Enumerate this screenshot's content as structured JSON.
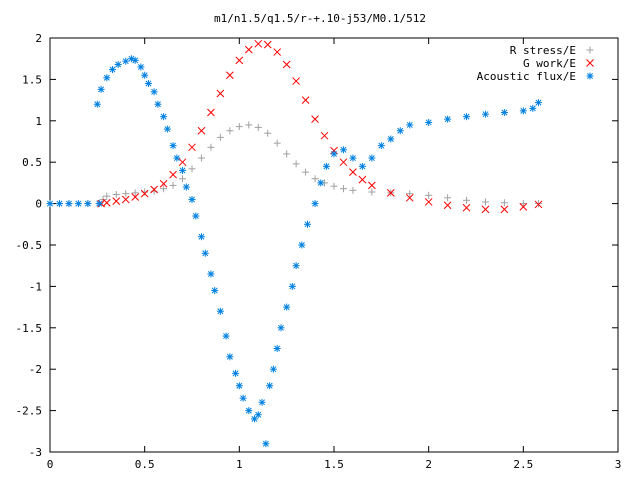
{
  "chart_data": {
    "type": "scatter",
    "title": "m1/n1.5/q1.5/r-+.10-j53/M0.1/512",
    "xlabel": "",
    "ylabel": "",
    "xlim": [
      0,
      3
    ],
    "ylim": [
      -3,
      2
    ],
    "xticks": [
      0,
      0.5,
      1,
      1.5,
      2,
      2.5,
      3
    ],
    "xtick_labels": [
      "0",
      "0.5",
      "1",
      "1.5",
      "2",
      "2.5",
      "3"
    ],
    "yticks": [
      -3,
      -2.5,
      -2,
      -1.5,
      -1,
      -0.5,
      0,
      0.5,
      1,
      1.5,
      2
    ],
    "ytick_labels": [
      "-3",
      "-2.5",
      "-2",
      "-1.5",
      "-1",
      "-0.5",
      "0",
      "0.5",
      "1",
      "1.5",
      "2"
    ],
    "grid": false,
    "legend_position": "top-right",
    "series": [
      {
        "name": "R stress/E",
        "marker": "plus",
        "color": "#a0a0a0",
        "points": [
          [
            0.0,
            0.0
          ],
          [
            0.1,
            0.0
          ],
          [
            0.2,
            0.0
          ],
          [
            0.26,
            0.0
          ],
          [
            0.28,
            0.05
          ],
          [
            0.3,
            0.09
          ],
          [
            0.35,
            0.11
          ],
          [
            0.4,
            0.12
          ],
          [
            0.45,
            0.13
          ],
          [
            0.5,
            0.14
          ],
          [
            0.55,
            0.15
          ],
          [
            0.6,
            0.18
          ],
          [
            0.65,
            0.22
          ],
          [
            0.7,
            0.3
          ],
          [
            0.75,
            0.42
          ],
          [
            0.8,
            0.55
          ],
          [
            0.85,
            0.68
          ],
          [
            0.9,
            0.8
          ],
          [
            0.95,
            0.88
          ],
          [
            1.0,
            0.93
          ],
          [
            1.05,
            0.95
          ],
          [
            1.1,
            0.92
          ],
          [
            1.15,
            0.85
          ],
          [
            1.2,
            0.73
          ],
          [
            1.25,
            0.6
          ],
          [
            1.3,
            0.48
          ],
          [
            1.35,
            0.38
          ],
          [
            1.4,
            0.3
          ],
          [
            1.45,
            0.25
          ],
          [
            1.5,
            0.21
          ],
          [
            1.55,
            0.18
          ],
          [
            1.6,
            0.16
          ],
          [
            1.7,
            0.14
          ],
          [
            1.8,
            0.13
          ],
          [
            1.9,
            0.12
          ],
          [
            2.0,
            0.1
          ],
          [
            2.1,
            0.07
          ],
          [
            2.2,
            0.04
          ],
          [
            2.3,
            0.02
          ],
          [
            2.4,
            0.01
          ],
          [
            2.5,
            0.0
          ],
          [
            2.58,
            0.0
          ]
        ]
      },
      {
        "name": "G work/E",
        "marker": "cross",
        "color": "#ff0000",
        "points": [
          [
            0.27,
            0.0
          ],
          [
            0.3,
            0.01
          ],
          [
            0.35,
            0.03
          ],
          [
            0.4,
            0.05
          ],
          [
            0.45,
            0.08
          ],
          [
            0.5,
            0.12
          ],
          [
            0.55,
            0.17
          ],
          [
            0.6,
            0.24
          ],
          [
            0.65,
            0.35
          ],
          [
            0.7,
            0.5
          ],
          [
            0.75,
            0.68
          ],
          [
            0.8,
            0.88
          ],
          [
            0.85,
            1.1
          ],
          [
            0.9,
            1.33
          ],
          [
            0.95,
            1.55
          ],
          [
            1.0,
            1.73
          ],
          [
            1.05,
            1.86
          ],
          [
            1.1,
            1.93
          ],
          [
            1.15,
            1.92
          ],
          [
            1.2,
            1.83
          ],
          [
            1.25,
            1.68
          ],
          [
            1.3,
            1.48
          ],
          [
            1.35,
            1.25
          ],
          [
            1.4,
            1.02
          ],
          [
            1.45,
            0.82
          ],
          [
            1.5,
            0.64
          ],
          [
            1.55,
            0.5
          ],
          [
            1.6,
            0.38
          ],
          [
            1.65,
            0.29
          ],
          [
            1.7,
            0.22
          ],
          [
            1.8,
            0.13
          ],
          [
            1.9,
            0.07
          ],
          [
            2.0,
            0.02
          ],
          [
            2.1,
            -0.02
          ],
          [
            2.2,
            -0.05
          ],
          [
            2.3,
            -0.07
          ],
          [
            2.4,
            -0.07
          ],
          [
            2.5,
            -0.04
          ],
          [
            2.58,
            -0.01
          ]
        ]
      },
      {
        "name": "Acoustic flux/E",
        "marker": "star",
        "color": "#0080e0",
        "points": [
          [
            0.0,
            0.0
          ],
          [
            0.05,
            0.0
          ],
          [
            0.1,
            0.0
          ],
          [
            0.15,
            0.0
          ],
          [
            0.2,
            0.0
          ],
          [
            0.26,
            0.0
          ],
          [
            0.25,
            1.2
          ],
          [
            0.27,
            1.38
          ],
          [
            0.3,
            1.52
          ],
          [
            0.33,
            1.62
          ],
          [
            0.36,
            1.68
          ],
          [
            0.4,
            1.72
          ],
          [
            0.43,
            1.75
          ],
          [
            0.45,
            1.73
          ],
          [
            0.48,
            1.65
          ],
          [
            0.5,
            1.55
          ],
          [
            0.52,
            1.45
          ],
          [
            0.55,
            1.35
          ],
          [
            0.57,
            1.2
          ],
          [
            0.6,
            1.05
          ],
          [
            0.62,
            0.9
          ],
          [
            0.65,
            0.7
          ],
          [
            0.67,
            0.55
          ],
          [
            0.7,
            0.4
          ],
          [
            0.72,
            0.2
          ],
          [
            0.75,
            0.05
          ],
          [
            0.77,
            -0.15
          ],
          [
            0.8,
            -0.4
          ],
          [
            0.82,
            -0.6
          ],
          [
            0.85,
            -0.85
          ],
          [
            0.87,
            -1.05
          ],
          [
            0.9,
            -1.3
          ],
          [
            0.93,
            -1.6
          ],
          [
            0.95,
            -1.85
          ],
          [
            0.98,
            -2.05
          ],
          [
            1.0,
            -2.2
          ],
          [
            1.02,
            -2.35
          ],
          [
            1.05,
            -2.5
          ],
          [
            1.08,
            -2.6
          ],
          [
            1.1,
            -2.55
          ],
          [
            1.12,
            -2.4
          ],
          [
            1.14,
            -2.9
          ],
          [
            1.16,
            -2.2
          ],
          [
            1.18,
            -2.0
          ],
          [
            1.2,
            -1.75
          ],
          [
            1.22,
            -1.5
          ],
          [
            1.25,
            -1.25
          ],
          [
            1.28,
            -1.0
          ],
          [
            1.3,
            -0.75
          ],
          [
            1.33,
            -0.5
          ],
          [
            1.36,
            -0.25
          ],
          [
            1.4,
            0.0
          ],
          [
            1.43,
            0.25
          ],
          [
            1.46,
            0.45
          ],
          [
            1.5,
            0.6
          ],
          [
            1.55,
            0.65
          ],
          [
            1.6,
            0.55
          ],
          [
            1.65,
            0.45
          ],
          [
            1.7,
            0.55
          ],
          [
            1.75,
            0.7
          ],
          [
            1.8,
            0.78
          ],
          [
            1.85,
            0.88
          ],
          [
            1.9,
            0.95
          ],
          [
            2.0,
            0.98
          ],
          [
            2.1,
            1.02
          ],
          [
            2.2,
            1.05
          ],
          [
            2.3,
            1.08
          ],
          [
            2.4,
            1.1
          ],
          [
            2.5,
            1.12
          ],
          [
            2.55,
            1.15
          ],
          [
            2.58,
            1.22
          ]
        ]
      }
    ]
  }
}
